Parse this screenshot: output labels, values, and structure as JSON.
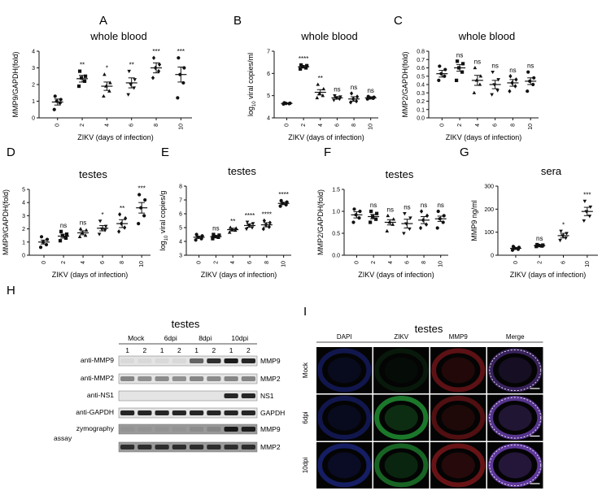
{
  "chart_data": [
    {
      "panel": "A",
      "type": "scatter",
      "title": "whole blood",
      "ylabel": "MMP9/GAPDH(fold)",
      "xlabel": "ZIKV (days of infection)",
      "categories": [
        "0",
        "2",
        "4",
        "6",
        "8",
        "10"
      ],
      "yticks": [
        "0",
        "1",
        "2",
        "3",
        "4"
      ],
      "ylim": [
        0,
        4
      ],
      "log_ylabel": false,
      "means": [
        0.95,
        2.35,
        1.9,
        2.1,
        3.0,
        2.6
      ],
      "sems": [
        0.18,
        0.2,
        0.25,
        0.3,
        0.3,
        0.45
      ],
      "points": [
        [
          0.5,
          0.9,
          1.0,
          1.1,
          1.3
        ],
        [
          1.9,
          2.2,
          2.4,
          2.5,
          2.8
        ],
        [
          1.3,
          1.6,
          1.9,
          2.1,
          2.6
        ],
        [
          1.4,
          1.8,
          2.0,
          2.3,
          2.8
        ],
        [
          2.4,
          2.8,
          3.0,
          3.2,
          3.6
        ],
        [
          1.2,
          2.1,
          2.6,
          3.0,
          3.6
        ]
      ],
      "significance": [
        "",
        "**",
        "*",
        "**",
        "***",
        "***"
      ],
      "markers": [
        "circle",
        "square",
        "triangle",
        "triangle-down",
        "diamond",
        "circle"
      ]
    },
    {
      "panel": "B",
      "type": "scatter",
      "title": "whole blood",
      "ylabel": "viral copies/ml",
      "xlabel": "ZIKV (days of infection)",
      "categories": [
        "0",
        "2",
        "4",
        "6",
        "8",
        "10"
      ],
      "yticks": [
        "4",
        "5",
        "6",
        "7"
      ],
      "ylim": [
        4,
        7
      ],
      "log_ylabel": true,
      "means": [
        4.65,
        6.3,
        5.15,
        4.9,
        4.85,
        4.9
      ],
      "sems": [
        0.02,
        0.05,
        0.12,
        0.06,
        0.1,
        0.05
      ],
      "points": [
        [
          4.62,
          4.64,
          4.65,
          4.66,
          4.68
        ],
        [
          6.2,
          6.25,
          6.3,
          6.35,
          6.38
        ],
        [
          4.9,
          5.0,
          5.1,
          5.3,
          5.5
        ],
        [
          4.8,
          4.85,
          4.9,
          4.95,
          5.0
        ],
        [
          4.7,
          4.75,
          4.85,
          4.95,
          5.1
        ],
        [
          4.85,
          4.88,
          4.9,
          4.93,
          4.96
        ]
      ],
      "significance": [
        "",
        "****",
        "**",
        "ns",
        "ns",
        "ns"
      ],
      "markers": [
        "circle",
        "square",
        "triangle",
        "triangle-down",
        "diamond",
        "circle"
      ]
    },
    {
      "panel": "C",
      "type": "scatter",
      "title": "whole blood",
      "ylabel": "MMP2/GAPDH(fold)",
      "xlabel": "ZIKV (days of infection)",
      "categories": [
        "0",
        "2",
        "4",
        "6",
        "8",
        "10"
      ],
      "yticks": [
        "0.0",
        "0.1",
        "0.2",
        "0.3",
        "0.4",
        "0.5",
        "0.6",
        "0.7",
        "0.8"
      ],
      "ylim": [
        0,
        0.8
      ],
      "log_ylabel": false,
      "means": [
        0.53,
        0.6,
        0.45,
        0.4,
        0.42,
        0.44
      ],
      "sems": [
        0.04,
        0.04,
        0.06,
        0.05,
        0.04,
        0.04
      ],
      "points": [
        [
          0.45,
          0.5,
          0.53,
          0.58,
          0.62
        ],
        [
          0.45,
          0.55,
          0.6,
          0.65,
          0.68
        ],
        [
          0.3,
          0.4,
          0.45,
          0.5,
          0.6
        ],
        [
          0.28,
          0.33,
          0.4,
          0.46,
          0.55
        ],
        [
          0.32,
          0.38,
          0.42,
          0.46,
          0.5
        ],
        [
          0.32,
          0.4,
          0.44,
          0.48,
          0.55
        ]
      ],
      "significance": [
        "",
        "ns",
        "ns",
        "ns",
        "ns",
        "ns"
      ],
      "markers": [
        "circle",
        "square",
        "triangle",
        "triangle-down",
        "diamond",
        "circle"
      ]
    },
    {
      "panel": "D",
      "type": "scatter",
      "title": "testes",
      "ylabel": "MMP9/GAPDH(fold)",
      "xlabel": "ZIKV (days of infection)",
      "categories": [
        "0",
        "2",
        "4",
        "6",
        "8",
        "10"
      ],
      "yticks": [
        "0",
        "1",
        "2",
        "3",
        "4",
        "5"
      ],
      "ylim": [
        0,
        5
      ],
      "log_ylabel": false,
      "means": [
        1.0,
        1.45,
        1.7,
        2.05,
        2.4,
        3.6
      ],
      "sems": [
        0.15,
        0.15,
        0.15,
        0.2,
        0.3,
        0.4
      ],
      "points": [
        [
          0.6,
          0.8,
          1.0,
          1.2,
          1.4
        ],
        [
          1.1,
          1.3,
          1.5,
          1.6,
          1.8
        ],
        [
          1.4,
          1.5,
          1.7,
          1.9,
          2.0
        ],
        [
          1.6,
          1.9,
          2.0,
          2.2,
          2.6
        ],
        [
          1.8,
          2.1,
          2.4,
          2.8,
          3.1
        ],
        [
          2.4,
          3.0,
          3.6,
          4.2,
          4.6
        ]
      ],
      "significance": [
        "",
        "ns",
        "ns",
        "*",
        "**",
        "***"
      ],
      "markers": [
        "circle",
        "square",
        "triangle",
        "triangle-down",
        "diamond",
        "circle"
      ]
    },
    {
      "panel": "E",
      "type": "scatter",
      "title": "testes",
      "ylabel": "viral copies/g",
      "xlabel": "ZIKV (days of infection)",
      "categories": [
        "0",
        "2",
        "4",
        "6",
        "8",
        "10"
      ],
      "yticks": [
        "3",
        "4",
        "5",
        "6",
        "7",
        "8"
      ],
      "ylim": [
        3,
        8
      ],
      "log_ylabel": true,
      "means": [
        4.3,
        4.35,
        4.85,
        5.15,
        5.2,
        6.75
      ],
      "sems": [
        0.08,
        0.08,
        0.1,
        0.12,
        0.15,
        0.08
      ],
      "points": [
        [
          4.1,
          4.2,
          4.3,
          4.4,
          4.5
        ],
        [
          4.2,
          4.3,
          4.35,
          4.45,
          4.5
        ],
        [
          4.65,
          4.8,
          4.85,
          4.95,
          5.0
        ],
        [
          4.9,
          5.0,
          5.15,
          5.3,
          5.4
        ],
        [
          4.9,
          5.05,
          5.2,
          5.35,
          5.5
        ],
        [
          6.55,
          6.65,
          6.75,
          6.85,
          6.95
        ]
      ],
      "significance": [
        "",
        "ns",
        "**",
        "****",
        "****",
        "****"
      ],
      "markers": [
        "circle",
        "square",
        "triangle",
        "triangle-down",
        "diamond",
        "circle"
      ]
    },
    {
      "panel": "F",
      "type": "scatter",
      "title": "testes",
      "ylabel": "MMP2/GAPDH(fold)",
      "xlabel": "ZIKV (days of infection)",
      "categories": [
        "0",
        "2",
        "4",
        "6",
        "8",
        "10"
      ],
      "yticks": [
        "0.0",
        "0.5",
        "1.0",
        "1.5"
      ],
      "ylim": [
        0,
        1.5
      ],
      "log_ylabel": false,
      "means": [
        0.92,
        0.88,
        0.75,
        0.72,
        0.8,
        0.83
      ],
      "sems": [
        0.07,
        0.05,
        0.06,
        0.1,
        0.08,
        0.06
      ],
      "points": [
        [
          0.75,
          0.85,
          0.92,
          1.0,
          1.05
        ],
        [
          0.75,
          0.82,
          0.88,
          0.95,
          1.0
        ],
        [
          0.55,
          0.7,
          0.75,
          0.82,
          0.9
        ],
        [
          0.5,
          0.6,
          0.72,
          0.85,
          0.95
        ],
        [
          0.62,
          0.7,
          0.8,
          0.9,
          1.0
        ],
        [
          0.62,
          0.75,
          0.83,
          0.9,
          1.0
        ]
      ],
      "significance": [
        "",
        "ns",
        "ns",
        "ns",
        "ns",
        "ns"
      ],
      "markers": [
        "circle",
        "square",
        "triangle",
        "triangle-down",
        "diamond",
        "circle"
      ]
    },
    {
      "panel": "G",
      "type": "scatter",
      "title": "sera",
      "ylabel": "MMP9 ng/ml",
      "xlabel": "ZIKV (days of infection)",
      "categories": [
        "0",
        "2",
        "6",
        "10"
      ],
      "yticks": [
        "0",
        "100",
        "200",
        "300"
      ],
      "ylim": [
        0,
        300
      ],
      "log_ylabel": false,
      "means": [
        30,
        42,
        85,
        190
      ],
      "sems": [
        4,
        4,
        10,
        18
      ],
      "points": [
        [
          22,
          26,
          30,
          34,
          38
        ],
        [
          38,
          40,
          42,
          44,
          46
        ],
        [
          65,
          75,
          85,
          95,
          105
        ],
        [
          150,
          170,
          190,
          210,
          235
        ]
      ],
      "significance": [
        "",
        "ns",
        "*",
        "***"
      ],
      "markers": [
        "circle",
        "square",
        "triangle-down",
        "triangle-down"
      ]
    }
  ],
  "blot": {
    "panel": "H",
    "title": "testes",
    "groups": [
      "Mock",
      "6dpi",
      "8dpi",
      "10dpi"
    ],
    "lanes": [
      "1",
      "2",
      "1",
      "2",
      "1",
      "2",
      "1",
      "2"
    ],
    "rows": [
      {
        "left": "anti-MMP9",
        "right": "MMP9",
        "intensities": [
          0.05,
          0.05,
          0.05,
          0.05,
          0.6,
          0.85,
          0.95,
          0.9
        ]
      },
      {
        "left": "anti-MMP2",
        "right": "MMP2",
        "intensities": [
          0.45,
          0.4,
          0.42,
          0.4,
          0.45,
          0.42,
          0.45,
          0.45
        ]
      },
      {
        "left": "anti-NS1",
        "right": "NS1",
        "intensities": [
          0,
          0,
          0,
          0,
          0,
          0,
          0.9,
          0.9
        ]
      },
      {
        "left": "anti-GAPDH",
        "right": "GAPDH",
        "intensities": [
          0.9,
          0.9,
          0.9,
          0.9,
          0.9,
          0.9,
          0.9,
          0.9
        ]
      },
      {
        "left": "zymography",
        "right": "MMP9",
        "intensities": [
          0.05,
          0.05,
          0.05,
          0.05,
          0.1,
          0.15,
          0.95,
          0.9
        ]
      },
      {
        "left": "assay",
        "right": "MMP2",
        "intensities": [
          0.8,
          0.8,
          0.8,
          0.8,
          0.8,
          0.8,
          0.8,
          0.8
        ]
      }
    ],
    "band_color": "#111111"
  },
  "micro": {
    "panel": "I",
    "title": "testes",
    "columns": [
      "DAPI",
      "ZIKV",
      "MMP9",
      "Merge"
    ],
    "rows": [
      "Mock",
      "6dpi",
      "10dpi"
    ],
    "channel_colors": [
      "#2a3cd8",
      "#2fd84a",
      "#e0262c",
      "#9b5cff"
    ]
  },
  "style": {
    "marker_color": "#111111",
    "line_color": "#111111"
  }
}
